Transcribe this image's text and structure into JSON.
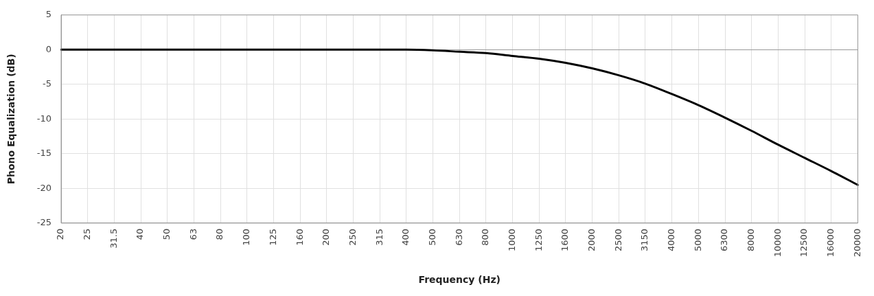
{
  "chart_data": {
    "type": "line",
    "xlabel": "Frequency (Hz)",
    "ylabel": "Phono Equalization (dB)",
    "categories": [
      "20",
      "25",
      "31.5",
      "40",
      "50",
      "63",
      "80",
      "100",
      "125",
      "160",
      "200",
      "250",
      "315",
      "400",
      "500",
      "630",
      "800",
      "1000",
      "1250",
      "1600",
      "2000",
      "2500",
      "3150",
      "4000",
      "5000",
      "6300",
      "8000",
      "10000",
      "12500",
      "16000",
      "20000"
    ],
    "series": [
      {
        "color": "#000000",
        "values": [
          0,
          0,
          0,
          0,
          0,
          0,
          0,
          0,
          0,
          0,
          0,
          0,
          0,
          0,
          -0.1,
          -0.3,
          -0.5,
          -0.9,
          -1.3,
          -1.9,
          -2.7,
          -3.7,
          -4.9,
          -6.4,
          -8.0,
          -9.8,
          -11.7,
          -13.7,
          -15.6,
          -17.5,
          -19.5
        ]
      }
    ],
    "ylim": [
      -25,
      5
    ],
    "yticks": [
      -25,
      -20,
      -15,
      -10,
      -5,
      0,
      5
    ],
    "grid": true,
    "legend": false,
    "marker": "none",
    "line_style": "solid"
  }
}
